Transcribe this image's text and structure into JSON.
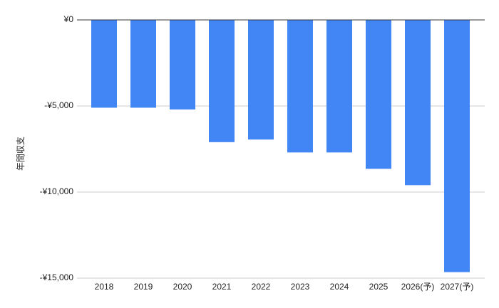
{
  "chart_data": {
    "type": "bar",
    "y_label": "年間収支",
    "categories": [
      "2018",
      "2019",
      "2020",
      "2021",
      "2022",
      "2023",
      "2024",
      "2025",
      "2026(予)",
      "2027(予)"
    ],
    "values": [
      -5100,
      -5100,
      -5200,
      -7100,
      -6950,
      -7700,
      -7700,
      -8650,
      -9600,
      -14650
    ],
    "color": "#4285f4",
    "ylim": [
      -15000,
      0
    ],
    "yticks": [
      {
        "value": 0,
        "label": "¥0"
      },
      {
        "value": -5000,
        "label": "-¥5,000"
      },
      {
        "value": -10000,
        "label": "-¥10,000"
      },
      {
        "value": -15000,
        "label": "-¥15,000"
      }
    ],
    "grid": true
  }
}
